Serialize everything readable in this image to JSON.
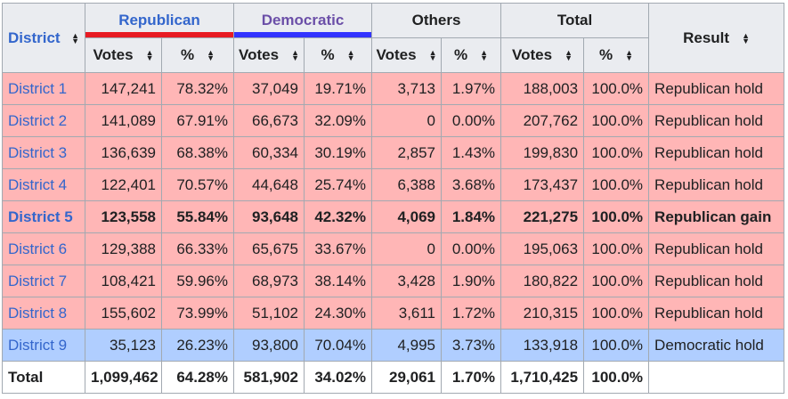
{
  "headers": {
    "district": "District",
    "republican": "Republican",
    "democratic": "Democratic",
    "others": "Others",
    "total": "Total",
    "result": "Result",
    "votes": "Votes",
    "pct": "%"
  },
  "colors": {
    "republican": "#e81b23",
    "democratic": "#3333ff",
    "rep_row": "#ffb6b6",
    "dem_row": "#b0ceff"
  },
  "rows": [
    {
      "district": "District 1",
      "rep_votes": "147,241",
      "rep_pct": "78.32%",
      "dem_votes": "37,049",
      "dem_pct": "19.71%",
      "oth_votes": "3,713",
      "oth_pct": "1.97%",
      "tot_votes": "188,003",
      "tot_pct": "100.0%",
      "result": "Republican hold"
    },
    {
      "district": "District 2",
      "rep_votes": "141,089",
      "rep_pct": "67.91%",
      "dem_votes": "66,673",
      "dem_pct": "32.09%",
      "oth_votes": "0",
      "oth_pct": "0.00%",
      "tot_votes": "207,762",
      "tot_pct": "100.0%",
      "result": "Republican hold"
    },
    {
      "district": "District 3",
      "rep_votes": "136,639",
      "rep_pct": "68.38%",
      "dem_votes": "60,334",
      "dem_pct": "30.19%",
      "oth_votes": "2,857",
      "oth_pct": "1.43%",
      "tot_votes": "199,830",
      "tot_pct": "100.0%",
      "result": "Republican hold"
    },
    {
      "district": "District 4",
      "rep_votes": "122,401",
      "rep_pct": "70.57%",
      "dem_votes": "44,648",
      "dem_pct": "25.74%",
      "oth_votes": "6,388",
      "oth_pct": "3.68%",
      "tot_votes": "173,437",
      "tot_pct": "100.0%",
      "result": "Republican hold"
    },
    {
      "district": "District 5",
      "rep_votes": "123,558",
      "rep_pct": "55.84%",
      "dem_votes": "93,648",
      "dem_pct": "42.32%",
      "oth_votes": "4,069",
      "oth_pct": "1.84%",
      "tot_votes": "221,275",
      "tot_pct": "100.0%",
      "result": "Republican gain"
    },
    {
      "district": "District 6",
      "rep_votes": "129,388",
      "rep_pct": "66.33%",
      "dem_votes": "65,675",
      "dem_pct": "33.67%",
      "oth_votes": "0",
      "oth_pct": "0.00%",
      "tot_votes": "195,063",
      "tot_pct": "100.0%",
      "result": "Republican hold"
    },
    {
      "district": "District 7",
      "rep_votes": "108,421",
      "rep_pct": "59.96%",
      "dem_votes": "68,973",
      "dem_pct": "38.14%",
      "oth_votes": "3,428",
      "oth_pct": "1.90%",
      "tot_votes": "180,822",
      "tot_pct": "100.0%",
      "result": "Republican hold"
    },
    {
      "district": "District 8",
      "rep_votes": "155,602",
      "rep_pct": "73.99%",
      "dem_votes": "51,102",
      "dem_pct": "24.30%",
      "oth_votes": "3,611",
      "oth_pct": "1.72%",
      "tot_votes": "210,315",
      "tot_pct": "100.0%",
      "result": "Republican hold"
    },
    {
      "district": "District 9",
      "rep_votes": "35,123",
      "rep_pct": "26.23%",
      "dem_votes": "93,800",
      "dem_pct": "70.04%",
      "oth_votes": "4,995",
      "oth_pct": "3.73%",
      "tot_votes": "133,918",
      "tot_pct": "100.0%",
      "result": "Democratic hold"
    }
  ],
  "totals": {
    "label": "Total",
    "rep_votes": "1,099,462",
    "rep_pct": "64.28%",
    "dem_votes": "581,902",
    "dem_pct": "34.02%",
    "oth_votes": "29,061",
    "oth_pct": "1.70%",
    "tot_votes": "1,710,425",
    "tot_pct": "100.0%"
  }
}
